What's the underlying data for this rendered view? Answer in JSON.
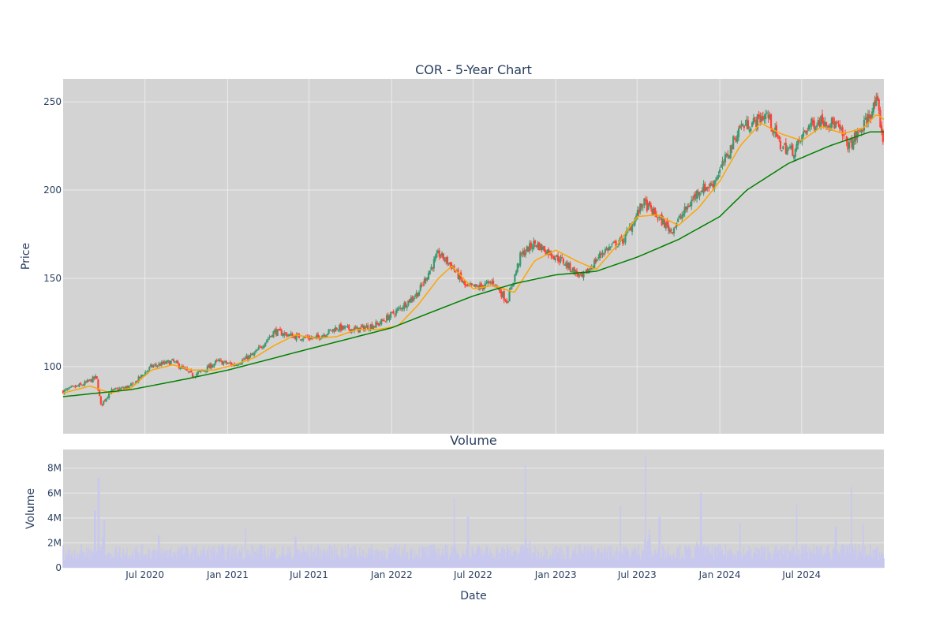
{
  "chart_data": [
    {
      "type": "candlestick",
      "title": "COR - 5-Year Chart",
      "xlabel": "",
      "ylabel": "Price",
      "ylim": [
        62,
        263
      ],
      "yticks": [
        100,
        150,
        200,
        250
      ],
      "grid": true,
      "colors": {
        "up": "#3d9970",
        "down": "#ff4136",
        "ma_short": "#ffa500",
        "ma_long": "#008000",
        "plot_bg": "#d3d3d3"
      },
      "series": [
        {
          "key": "price",
          "x": [
            "2020-01-01",
            "2020-02-15",
            "2020-03-15",
            "2020-03-25",
            "2020-04-15",
            "2020-06-01",
            "2020-07-15",
            "2020-09-01",
            "2020-10-15",
            "2020-11-10",
            "2020-12-10",
            "2021-01-15",
            "2021-03-01",
            "2021-04-15",
            "2021-06-01",
            "2021-07-15",
            "2021-09-01",
            "2021-10-15",
            "2021-12-01",
            "2022-01-15",
            "2022-03-01",
            "2022-04-15",
            "2022-05-15",
            "2022-06-15",
            "2022-07-15",
            "2022-08-15",
            "2022-09-15",
            "2022-10-15",
            "2022-11-15",
            "2022-12-15",
            "2023-01-15",
            "2023-03-01",
            "2023-04-15",
            "2023-06-01",
            "2023-07-15",
            "2023-08-15",
            "2023-09-15",
            "2023-10-15",
            "2023-11-15",
            "2023-12-15",
            "2024-01-15",
            "2024-02-15",
            "2024-03-15",
            "2024-04-15",
            "2024-05-15",
            "2024-06-15",
            "2024-07-15",
            "2024-08-15",
            "2024-09-15",
            "2024-10-15",
            "2024-11-15",
            "2024-12-15",
            "2024-12-31"
          ],
          "close": [
            86,
            90,
            94,
            78,
            86,
            89,
            100,
            103,
            95,
            98,
            103,
            101,
            107,
            120,
            117,
            116,
            122,
            121,
            124,
            132,
            142,
            164,
            157,
            145,
            145,
            148,
            137,
            163,
            170,
            165,
            160,
            150,
            165,
            172,
            193,
            185,
            177,
            188,
            200,
            203,
            218,
            236,
            238,
            243,
            225,
            222,
            236,
            240,
            237,
            225,
            236,
            250,
            226
          ]
        },
        {
          "key": "ma_short",
          "x": [
            "2020-01-01",
            "2020-03-01",
            "2020-04-15",
            "2020-06-01",
            "2020-07-15",
            "2020-09-01",
            "2020-10-15",
            "2020-12-01",
            "2021-01-15",
            "2021-03-01",
            "2021-04-15",
            "2021-06-01",
            "2021-07-15",
            "2021-09-01",
            "2021-10-15",
            "2021-12-01",
            "2022-01-15",
            "2022-03-01",
            "2022-04-15",
            "2022-05-15",
            "2022-07-01",
            "2022-08-15",
            "2022-10-01",
            "2022-11-15",
            "2023-01-01",
            "2023-02-15",
            "2023-04-01",
            "2023-05-15",
            "2023-07-01",
            "2023-08-15",
            "2023-10-01",
            "2023-11-15",
            "2024-01-01",
            "2024-02-15",
            "2024-04-01",
            "2024-05-15",
            "2024-07-01",
            "2024-08-15",
            "2024-10-01",
            "2024-11-15",
            "2024-12-15",
            "2024-12-31"
          ],
          "values": [
            85,
            89,
            85,
            88,
            98,
            101,
            98,
            98,
            101,
            105,
            112,
            118,
            116,
            117,
            121,
            121,
            123,
            135,
            150,
            157,
            144,
            146,
            142,
            160,
            166,
            160,
            155,
            168,
            185,
            186,
            180,
            190,
            205,
            225,
            238,
            232,
            228,
            236,
            232,
            235,
            243,
            240
          ]
        },
        {
          "key": "ma_long",
          "x": [
            "2020-01-01",
            "2020-06-01",
            "2020-10-01",
            "2021-01-01",
            "2021-07-01",
            "2022-01-01",
            "2022-04-01",
            "2022-07-01",
            "2022-10-01",
            "2023-01-01",
            "2023-04-01",
            "2023-07-01",
            "2023-10-01",
            "2024-01-01",
            "2024-03-01",
            "2024-06-01",
            "2024-09-01",
            "2024-12-01",
            "2024-12-31"
          ],
          "values": [
            83,
            87,
            93,
            98,
            110,
            122,
            131,
            140,
            147,
            152,
            154,
            162,
            172,
            185,
            200,
            215,
            225,
            233,
            233
          ]
        }
      ]
    },
    {
      "type": "bar",
      "title": "Volume",
      "xlabel": "Date",
      "ylabel": "Volume",
      "ylim": [
        0,
        9500000
      ],
      "yticks": [
        0,
        2000000,
        4000000,
        6000000,
        8000000
      ],
      "ytick_labels": [
        "0",
        "2M",
        "4M",
        "6M",
        "8M"
      ],
      "xlim": [
        "2020-01-01",
        "2024-12-31"
      ],
      "xticks": [
        "2020-07-01",
        "2021-01-01",
        "2021-07-01",
        "2022-01-01",
        "2022-07-01",
        "2023-01-01",
        "2023-07-01",
        "2024-01-01",
        "2024-07-01"
      ],
      "xtick_labels": [
        "Jul 2020",
        "Jan 2021",
        "Jul 2021",
        "Jan 2022",
        "Jul 2022",
        "Jan 2023",
        "Jul 2023",
        "Jan 2024",
        "Jul 2024"
      ],
      "colors": {
        "bar": "#c8c8ee",
        "plot_bg": "#d3d3d3"
      },
      "series": [
        {
          "key": "volume",
          "x": [
            "2020-03-12",
            "2020-03-20",
            "2020-04-01",
            "2020-08-01",
            "2021-02-10",
            "2021-06-01",
            "2022-05-20",
            "2022-06-20",
            "2022-10-25",
            "2023-05-25",
            "2023-07-20",
            "2023-08-20",
            "2023-11-20",
            "2024-02-15",
            "2024-06-20",
            "2024-09-15",
            "2024-10-20",
            "2024-11-15"
          ],
          "values": [
            4600000,
            7200000,
            3800000,
            2600000,
            3200000,
            2500000,
            5600000,
            4100000,
            8200000,
            5000000,
            9000000,
            4100000,
            6000000,
            3600000,
            5100000,
            3300000,
            6500000,
            3500000
          ]
        }
      ]
    }
  ]
}
